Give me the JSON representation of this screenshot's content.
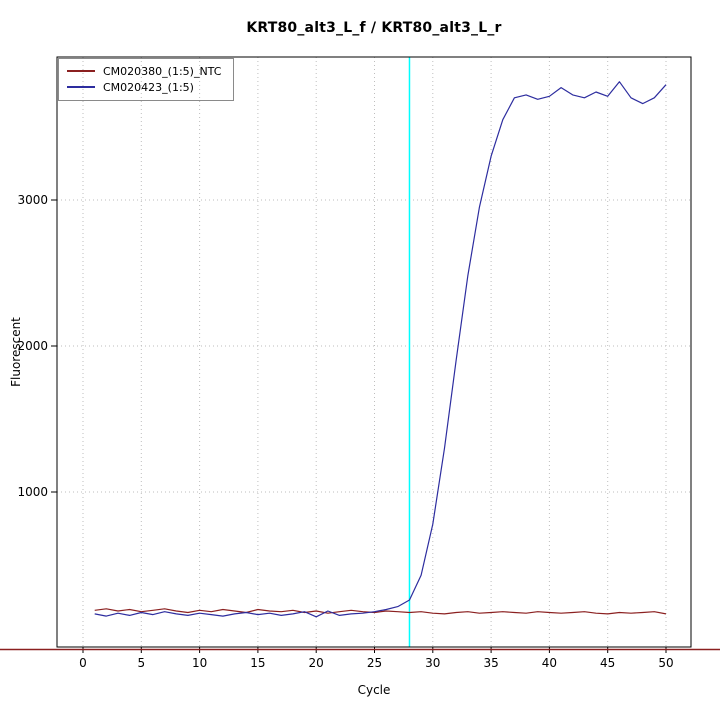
{
  "chart_data": {
    "type": "line",
    "title": "KRT80_alt3_L_f / KRT80_alt3_L_r",
    "xlabel": "Cycle",
    "ylabel": "Fluorescent",
    "xlim": [
      0,
      50
    ],
    "ylim": [
      0,
      3980
    ],
    "xticks": [
      0,
      5,
      10,
      15,
      20,
      25,
      30,
      35,
      40,
      45,
      50
    ],
    "yticks": [
      1000,
      2000,
      3000
    ],
    "grid": "dotted",
    "grid_color": "#BEBEBE",
    "axis_color": "#000000",
    "legend_position": "top-left",
    "threshold_cycle_line": {
      "x": 28,
      "color": "#00FFFF"
    },
    "bottom_rule_color": "#8B2020",
    "x": [
      1,
      2,
      3,
      4,
      5,
      6,
      7,
      8,
      9,
      10,
      11,
      12,
      13,
      14,
      15,
      16,
      17,
      18,
      19,
      20,
      21,
      22,
      23,
      24,
      25,
      26,
      27,
      28,
      29,
      30,
      31,
      32,
      33,
      34,
      35,
      36,
      37,
      38,
      39,
      40,
      41,
      42,
      43,
      44,
      45,
      46,
      47,
      48,
      49,
      50
    ],
    "series": [
      {
        "name": "CM020380_(1:5)_NTC",
        "color": "#8B2020",
        "values": [
          190,
          200,
          185,
          195,
          180,
          190,
          200,
          185,
          175,
          190,
          180,
          195,
          185,
          175,
          195,
          185,
          180,
          190,
          175,
          185,
          170,
          180,
          190,
          180,
          175,
          185,
          180,
          175,
          180,
          170,
          165,
          175,
          180,
          170,
          175,
          180,
          175,
          170,
          180,
          175,
          170,
          175,
          180,
          170,
          165,
          175,
          170,
          175,
          180,
          165
        ]
      },
      {
        "name": "CM020423_(1:5)",
        "color": "#2D2D9F",
        "values": [
          165,
          150,
          170,
          155,
          175,
          160,
          180,
          165,
          155,
          170,
          160,
          150,
          165,
          175,
          160,
          170,
          155,
          165,
          180,
          145,
          185,
          155,
          165,
          170,
          180,
          195,
          215,
          260,
          430,
          780,
          1300,
          1900,
          2480,
          2950,
          3300,
          3550,
          3700,
          3720,
          3690,
          3710,
          3770,
          3720,
          3700,
          3740,
          3710,
          3810,
          3700,
          3660,
          3700,
          3790
        ]
      }
    ]
  }
}
